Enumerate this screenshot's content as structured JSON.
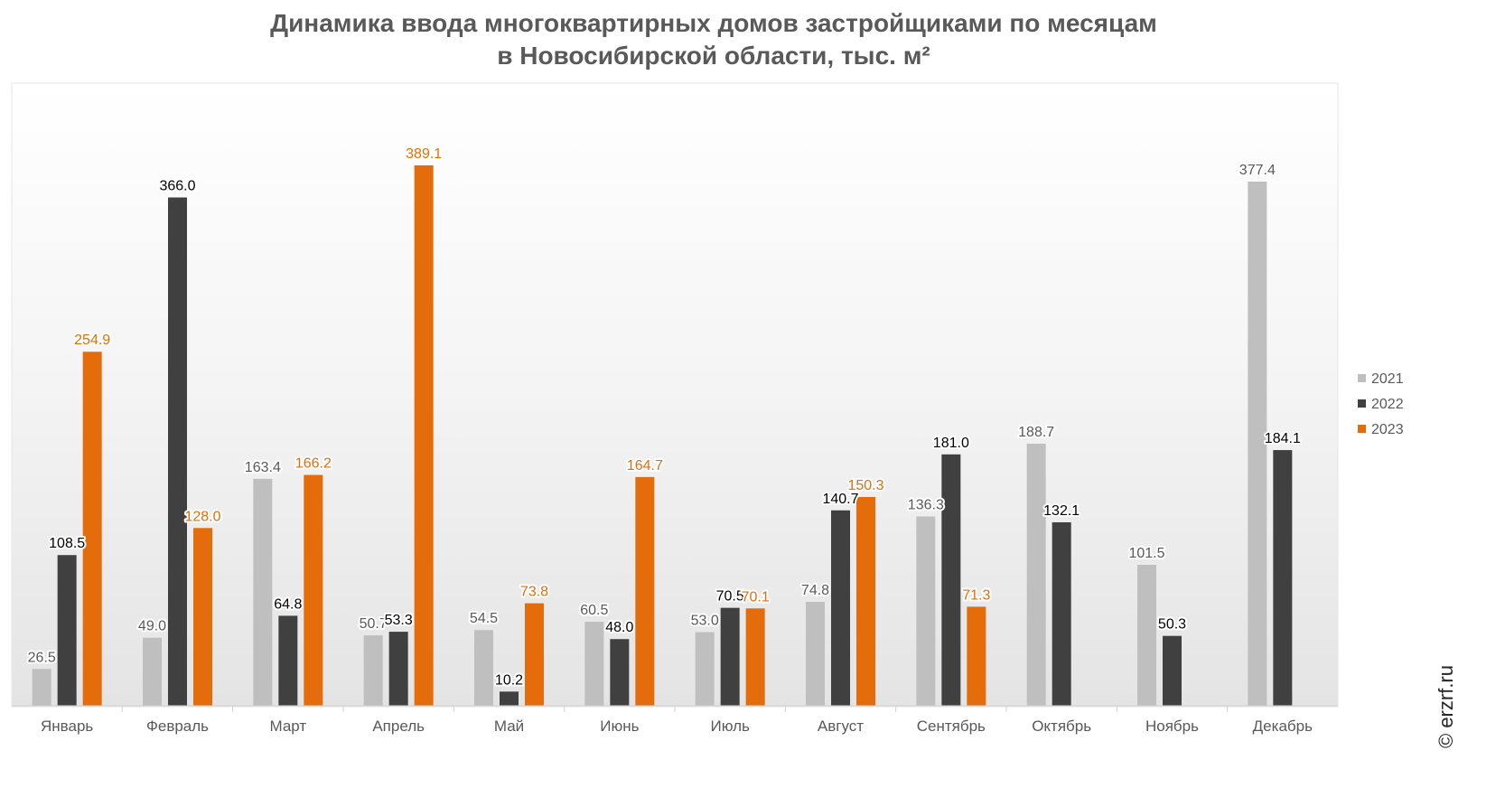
{
  "chart_data": {
    "type": "bar",
    "title": "Динамика ввода многоквартирных домов застройщиками по месяцам",
    "subtitle": "в Новосибирской области, тыс. м²",
    "categories": [
      "Январь",
      "Февраль",
      "Март",
      "Апрель",
      "Май",
      "Июнь",
      "Июль",
      "Август",
      "Сентябрь",
      "Октябрь",
      "Ноябрь",
      "Декабрь"
    ],
    "series": [
      {
        "name": "2021",
        "color": "#bfbfbf",
        "label_color": "#595959",
        "values": [
          26.5,
          49.0,
          163.4,
          50.7,
          54.5,
          60.5,
          53.0,
          74.8,
          136.3,
          188.7,
          101.5,
          377.4
        ]
      },
      {
        "name": "2022",
        "color": "#404040",
        "label_color": "#000000",
        "values": [
          108.5,
          366.0,
          64.8,
          53.3,
          10.2,
          48.0,
          70.5,
          140.7,
          181.0,
          132.1,
          50.3,
          184.1
        ]
      },
      {
        "name": "2023",
        "color": "#e46c0a",
        "label_color": "#e46c0a",
        "values": [
          254.9,
          128.0,
          166.2,
          389.1,
          73.8,
          164.7,
          70.1,
          150.3,
          71.3,
          null,
          null,
          null
        ]
      }
    ],
    "ylim": [
      0,
      400
    ],
    "legend_position": "right",
    "grid": false
  },
  "watermark": "© erzrf.ru"
}
